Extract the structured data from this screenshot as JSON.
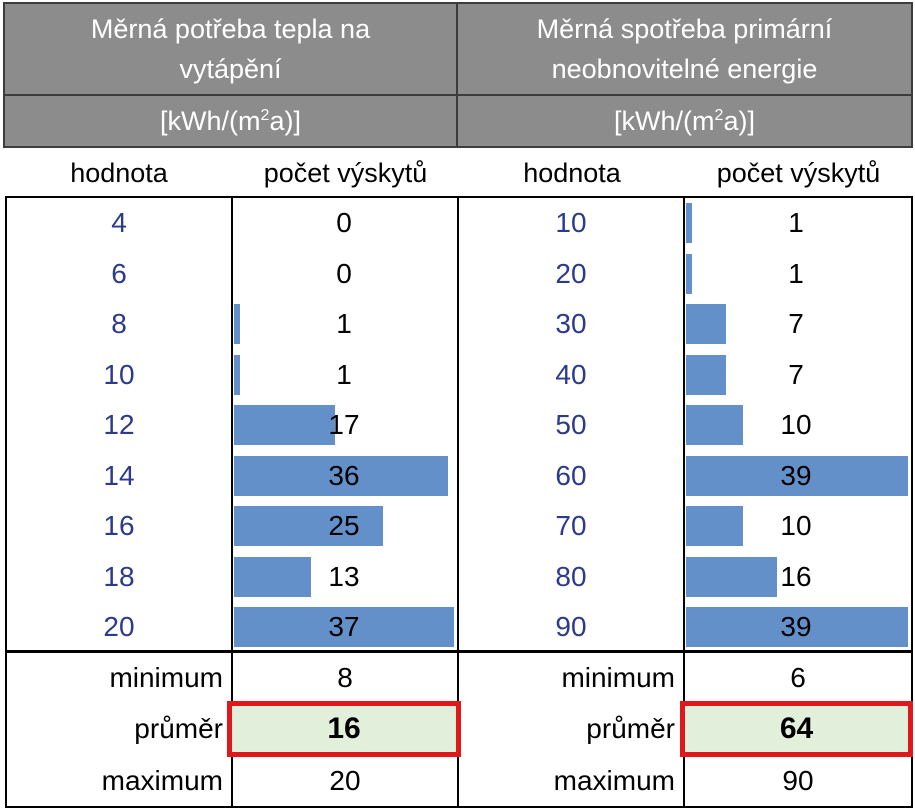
{
  "left": {
    "header_line1": "Měrná potřeba tepla na",
    "header_line2": "vytápění",
    "unit_pre": "[kWh/(m",
    "unit_sup": "2",
    "unit_post": "a)]",
    "col_value": "hodnota",
    "col_count": "počet výskytů",
    "rows": [
      {
        "value": "4",
        "count": "0"
      },
      {
        "value": "6",
        "count": "0"
      },
      {
        "value": "8",
        "count": "1"
      },
      {
        "value": "10",
        "count": "1"
      },
      {
        "value": "12",
        "count": "17"
      },
      {
        "value": "14",
        "count": "36"
      },
      {
        "value": "16",
        "count": "25"
      },
      {
        "value": "18",
        "count": "13"
      },
      {
        "value": "20",
        "count": "37"
      }
    ],
    "min_label": "minimum",
    "min_value": "8",
    "avg_label": "průměr",
    "avg_value": "16",
    "max_label": "maximum",
    "max_value": "20"
  },
  "right": {
    "header_line1": "Měrná spotřeba primární",
    "header_line2": "neobnovitelné energie",
    "unit_pre": "[kWh/(m",
    "unit_sup": "2",
    "unit_post": "a)]",
    "col_value": "hodnota",
    "col_count": "počet výskytů",
    "rows": [
      {
        "value": "10",
        "count": "1"
      },
      {
        "value": "20",
        "count": "1"
      },
      {
        "value": "30",
        "count": "7"
      },
      {
        "value": "40",
        "count": "7"
      },
      {
        "value": "50",
        "count": "10"
      },
      {
        "value": "60",
        "count": "39"
      },
      {
        "value": "70",
        "count": "10"
      },
      {
        "value": "80",
        "count": "16"
      },
      {
        "value": "90",
        "count": "39"
      }
    ],
    "min_label": "minimum",
    "min_value": "6",
    "avg_label": "průměr",
    "avg_value": "64",
    "max_label": "maximum",
    "max_value": "90"
  },
  "colors": {
    "header_bg": "#8c8c8c",
    "bar": "#6490c9",
    "value_text": "#2b3a8c",
    "avg_bg": "#e2efda",
    "highlight_border": "#e0171b"
  }
}
